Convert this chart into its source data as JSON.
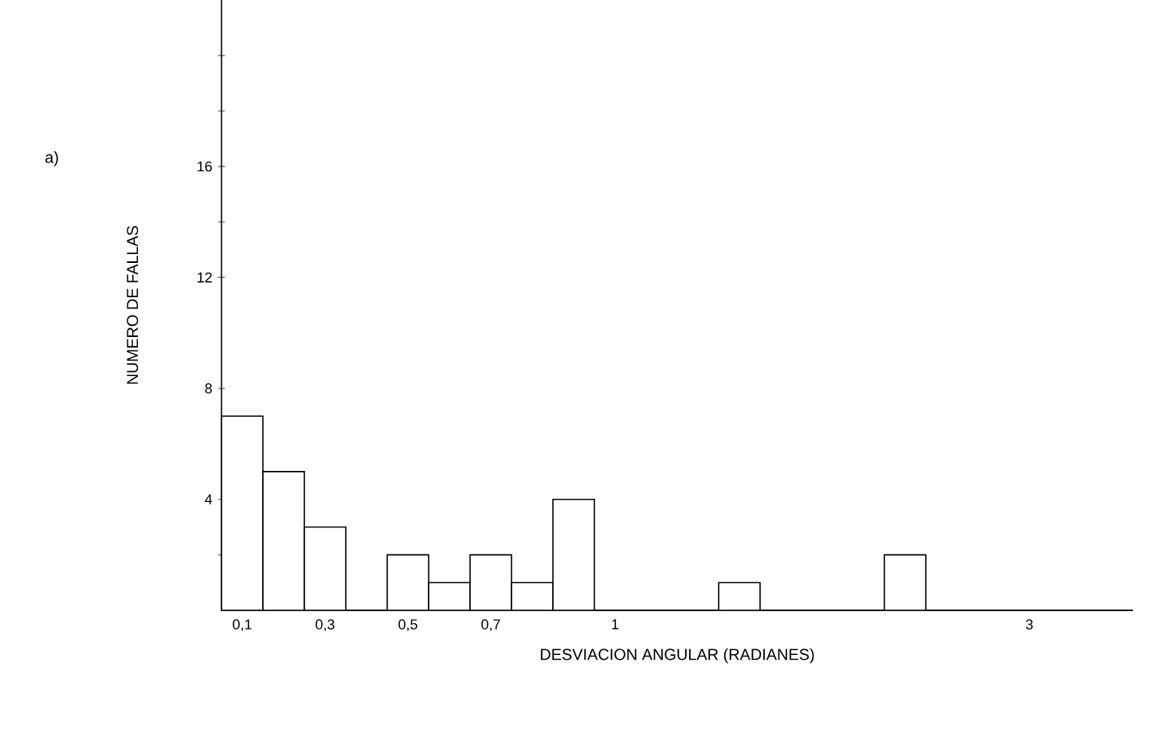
{
  "chart_data": {
    "type": "bar",
    "xlabel": "DESVIACION ANGULAR (RADIANES)",
    "ylabel": "NUMERO DE FALLAS",
    "annotations": [
      "a)"
    ],
    "categories": [
      "0,1",
      null,
      "0,3",
      null,
      "0,5",
      null,
      "0,7",
      null,
      null,
      "1",
      null,
      null,
      null,
      null,
      null,
      null,
      null,
      null,
      null,
      "3",
      null,
      null
    ],
    "values": [
      7,
      5,
      3,
      0,
      2,
      1,
      2,
      1,
      4,
      0,
      0,
      0,
      1,
      0,
      0,
      0,
      2,
      0,
      0,
      0,
      0,
      0
    ],
    "color": "#000000",
    "ylim": [
      0,
      22
    ],
    "yticks": [
      {
        "value": 2,
        "label": null
      },
      4,
      8,
      12,
      {
        "value": 14,
        "label": null
      },
      16,
      {
        "value": 18,
        "label": null
      },
      {
        "value": 20,
        "label": null
      }
    ],
    "grid": false
  }
}
